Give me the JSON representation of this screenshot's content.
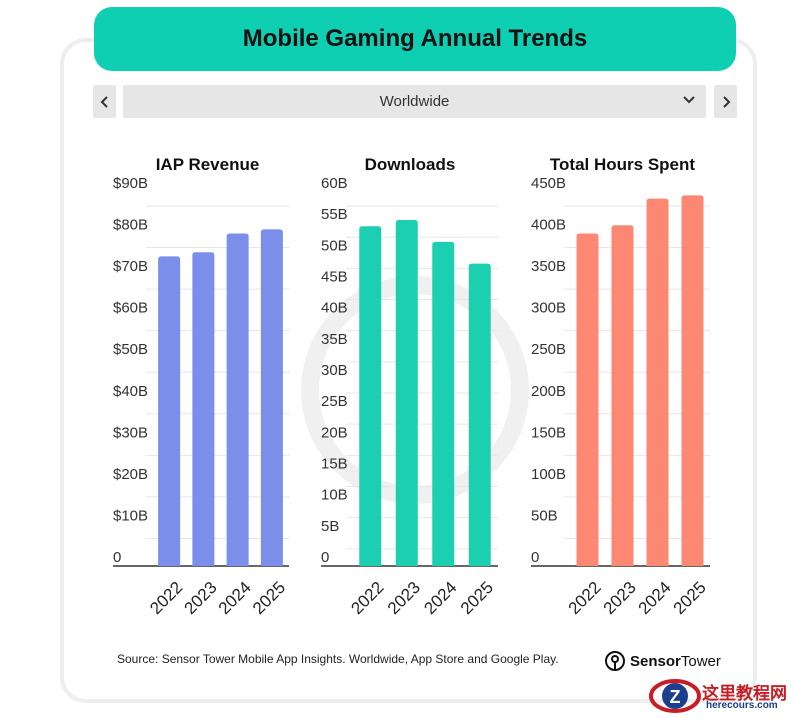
{
  "header": {
    "title": "Mobile Gaming Annual Trends"
  },
  "region_selector": {
    "value": "Worldwide",
    "prev_icon": "chevron-left-icon",
    "next_icon": "chevron-right-icon"
  },
  "colors": {
    "title_bg": "#0fcfb3",
    "iap": "#7b8fea",
    "downloads": "#1ccfb1",
    "hours": "#fc8873"
  },
  "chart_data": [
    {
      "type": "bar",
      "title": "IAP Revenue",
      "categories": [
        "2022",
        "2023",
        "2024",
        "2025"
      ],
      "values": [
        74.5,
        75.5,
        80,
        81
      ],
      "ylim": [
        0,
        90
      ],
      "yticks": [
        "0",
        "$10B",
        "$20B",
        "$30B",
        "$40B",
        "$50B",
        "$60B",
        "$70B",
        "$80B",
        "$90B"
      ],
      "grid": true
    },
    {
      "type": "bar",
      "title": "Downloads",
      "categories": [
        "2022",
        "2023",
        "2024",
        "2025"
      ],
      "values": [
        54.5,
        55.5,
        52,
        48.5
      ],
      "ylim": [
        0,
        60
      ],
      "yticks": [
        "0",
        "5B",
        "10B",
        "15B",
        "20B",
        "25B",
        "30B",
        "35B",
        "40B",
        "45B",
        "50B",
        "55B",
        "60B"
      ],
      "grid": true
    },
    {
      "type": "bar",
      "title": "Total Hours Spent",
      "categories": [
        "2022",
        "2023",
        "2024",
        "2025"
      ],
      "values": [
        400,
        410,
        442,
        446
      ],
      "ylim": [
        0,
        450
      ],
      "yticks": [
        "0",
        "50B",
        "100B",
        "150B",
        "200B",
        "250B",
        "300B",
        "350B",
        "400B",
        "450B"
      ],
      "grid": true
    }
  ],
  "footer": {
    "source": "Source: Sensor Tower Mobile App Insights. Worldwide, App Store and Google Play.",
    "brand_bold": "Sensor",
    "brand_regular": "Tower"
  },
  "watermark": {
    "text": "这里教程网",
    "sub": "herecours.com"
  }
}
